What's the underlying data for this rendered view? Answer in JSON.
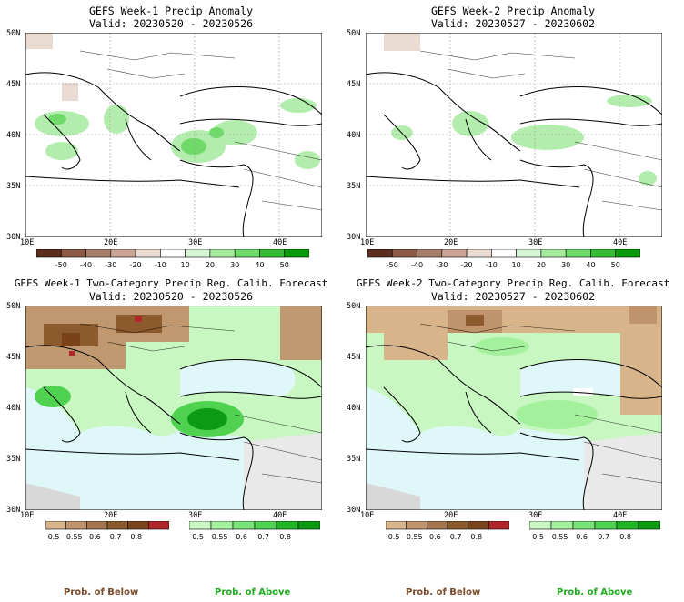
{
  "panels": [
    {
      "title": "GEFS Week-1 Precip Anomaly",
      "valid": "Valid: 20230520 - 20230526"
    },
    {
      "title": "GEFS Week-2 Precip Anomaly",
      "valid": "Valid: 20230527 - 20230602"
    },
    {
      "title": "GEFS Week-1 Two-Category Precip Reg. Calib. Forecast",
      "valid": "Valid: 20230520 - 20230526"
    },
    {
      "title": "GEFS Week-2 Two-Category Precip Reg. Calib. Forecast",
      "valid": "Valid: 20230527 - 20230602"
    }
  ],
  "lat_labels": [
    "50N",
    "45N",
    "40N",
    "35N",
    "30N"
  ],
  "lon_labels": [
    "10E",
    "20E",
    "30E",
    "40E"
  ],
  "anomaly_colorbar": {
    "labels": [
      "-50",
      "-40",
      "-30",
      "-20",
      "-10",
      "10",
      "20",
      "30",
      "40",
      "50"
    ],
    "colors": [
      "#5a2d1e",
      "#8a5a45",
      "#a77d6c",
      "#c9a495",
      "#eadbd2",
      "#ffffff",
      "#d7f5d7",
      "#a6ea9f",
      "#6fd96a",
      "#36bb34",
      "#089a0a"
    ]
  },
  "prob_below_colorbar": {
    "labels": [
      "0.5",
      "0.55",
      "0.6",
      "0.7",
      "0.8"
    ],
    "colors": [
      "#d8b48b",
      "#bf936b",
      "#a47650",
      "#8b5a2d",
      "#7a4218",
      "#b0262a"
    ]
  },
  "prob_above_colorbar": {
    "labels": [
      "0.5",
      "0.55",
      "0.6",
      "0.7",
      "0.8"
    ],
    "colors": [
      "#c8f7c2",
      "#a3f09d",
      "#79e377",
      "#4fd24f",
      "#20b525",
      "#0b9a12"
    ]
  },
  "footer": {
    "below_left": "Prob. of Below",
    "above_left": "Prob. of Above",
    "below_right": "Prob. of Below",
    "above_right": "Prob. of Above"
  },
  "footer_colors": {
    "below": "#7a4a2a",
    "above": "#22aa22"
  }
}
